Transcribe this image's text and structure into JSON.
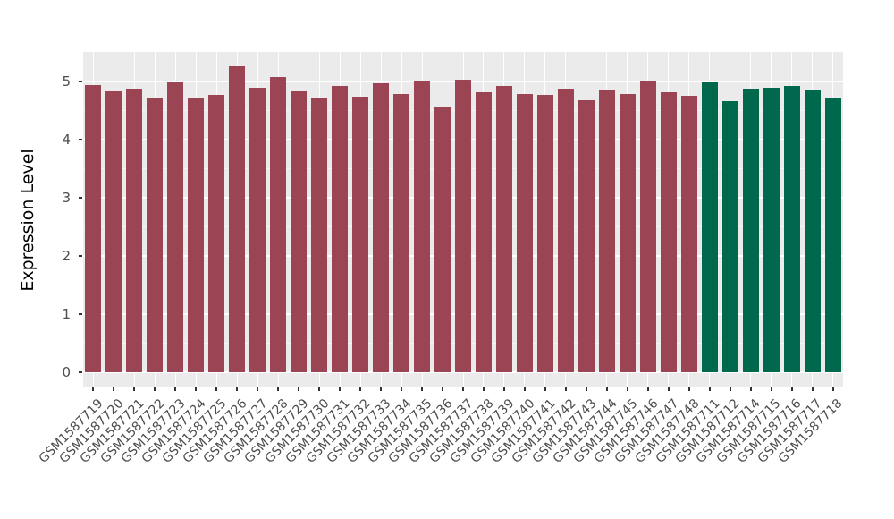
{
  "chart_data": {
    "type": "bar",
    "title": "",
    "xlabel": "",
    "ylabel": "Expression Level",
    "ylim": [
      0,
      5.5
    ],
    "ytick_values": [
      0,
      1,
      2,
      3,
      4,
      5
    ],
    "ytick_labels": [
      "0",
      "1",
      "2",
      "3",
      "4",
      "5"
    ],
    "minor_tick_values": [
      0.5,
      1.5,
      2.5,
      3.5,
      4.5
    ],
    "grid": true,
    "legend_position": "none",
    "bars": [
      {
        "label": "GSM1587719",
        "value": 4.94,
        "group": "maroon"
      },
      {
        "label": "GSM1587720",
        "value": 4.83,
        "group": "maroon"
      },
      {
        "label": "GSM1587721",
        "value": 4.88,
        "group": "maroon"
      },
      {
        "label": "GSM1587722",
        "value": 4.73,
        "group": "maroon"
      },
      {
        "label": "GSM1587723",
        "value": 4.99,
        "group": "maroon"
      },
      {
        "label": "GSM1587724",
        "value": 4.71,
        "group": "maroon"
      },
      {
        "label": "GSM1587725",
        "value": 4.77,
        "group": "maroon"
      },
      {
        "label": "GSM1587726",
        "value": 5.26,
        "group": "maroon"
      },
      {
        "label": "GSM1587727",
        "value": 4.89,
        "group": "maroon"
      },
      {
        "label": "GSM1587728",
        "value": 5.07,
        "group": "maroon"
      },
      {
        "label": "GSM1587729",
        "value": 4.83,
        "group": "maroon"
      },
      {
        "label": "GSM1587730",
        "value": 4.71,
        "group": "maroon"
      },
      {
        "label": "GSM1587731",
        "value": 4.92,
        "group": "maroon"
      },
      {
        "label": "GSM1587732",
        "value": 4.74,
        "group": "maroon"
      },
      {
        "label": "GSM1587733",
        "value": 4.97,
        "group": "maroon"
      },
      {
        "label": "GSM1587734",
        "value": 4.78,
        "group": "maroon"
      },
      {
        "label": "GSM1587735",
        "value": 5.02,
        "group": "maroon"
      },
      {
        "label": "GSM1587736",
        "value": 4.55,
        "group": "maroon"
      },
      {
        "label": "GSM1587737",
        "value": 5.03,
        "group": "maroon"
      },
      {
        "label": "GSM1587738",
        "value": 4.82,
        "group": "maroon"
      },
      {
        "label": "GSM1587739",
        "value": 4.92,
        "group": "maroon"
      },
      {
        "label": "GSM1587740",
        "value": 4.79,
        "group": "maroon"
      },
      {
        "label": "GSM1587741",
        "value": 4.77,
        "group": "maroon"
      },
      {
        "label": "GSM1587742",
        "value": 4.86,
        "group": "maroon"
      },
      {
        "label": "GSM1587743",
        "value": 4.67,
        "group": "maroon"
      },
      {
        "label": "GSM1587744",
        "value": 4.85,
        "group": "maroon"
      },
      {
        "label": "GSM1587745",
        "value": 4.78,
        "group": "maroon"
      },
      {
        "label": "GSM1587746",
        "value": 5.02,
        "group": "maroon"
      },
      {
        "label": "GSM1587747",
        "value": 4.82,
        "group": "maroon"
      },
      {
        "label": "GSM1587748",
        "value": 4.75,
        "group": "maroon"
      },
      {
        "label": "GSM1587711",
        "value": 4.98,
        "group": "green"
      },
      {
        "label": "GSM1587712",
        "value": 4.66,
        "group": "green"
      },
      {
        "label": "GSM1587714",
        "value": 4.88,
        "group": "green"
      },
      {
        "label": "GSM1587715",
        "value": 4.9,
        "group": "green"
      },
      {
        "label": "GSM1587716",
        "value": 4.92,
        "group": "green"
      },
      {
        "label": "GSM1587717",
        "value": 4.85,
        "group": "green"
      },
      {
        "label": "GSM1587718",
        "value": 4.72,
        "group": "green"
      }
    ],
    "group_colors": {
      "maroon": "#9B4453",
      "green": "#00684D"
    }
  },
  "colors": {
    "page_bg": "#FFFFFF",
    "panel_bg": "#EBEBEB",
    "grid_major": "#FFFFFF",
    "grid_minor": "#F5F5F5",
    "axis_text": "#4D4D4D",
    "axis_title": "#000000",
    "tick_mark": "#333333"
  }
}
